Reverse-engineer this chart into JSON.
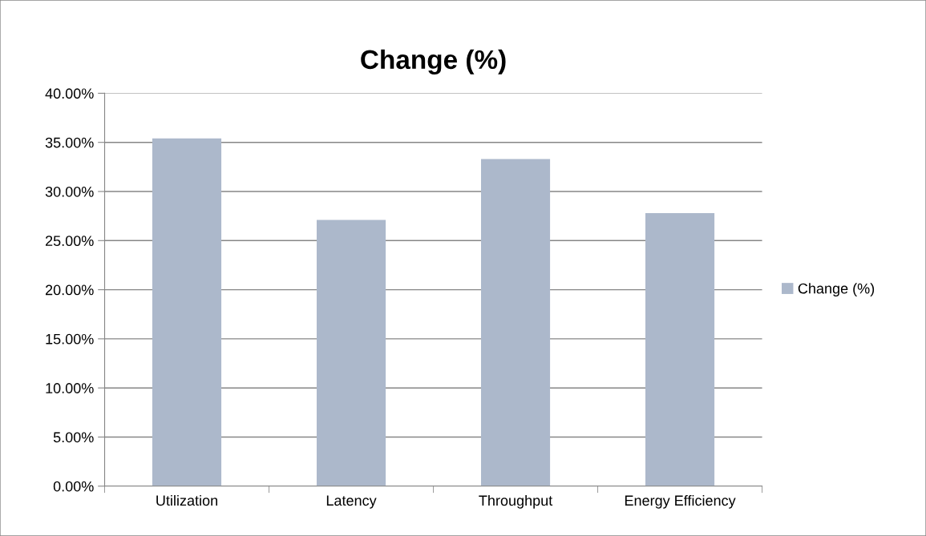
{
  "chart_data": {
    "type": "bar",
    "title": "Change (%)",
    "categories": [
      "Utilization",
      "Latency",
      "Throughput",
      "Energy Efficiency"
    ],
    "series": [
      {
        "name": "Change (%)",
        "color": "#acb8cb",
        "values": [
          35.4,
          27.1,
          33.3,
          27.8
        ]
      }
    ],
    "ylim": [
      0,
      40
    ],
    "yticks": [
      {
        "value": 0,
        "label": "0.00%"
      },
      {
        "value": 5,
        "label": "5.00%"
      },
      {
        "value": 10,
        "label": "10.00%"
      },
      {
        "value": 15,
        "label": "15.00%"
      },
      {
        "value": 20,
        "label": "20.00%"
      },
      {
        "value": 25,
        "label": "25.00%"
      },
      {
        "value": 30,
        "label": "30.00%"
      },
      {
        "value": 35,
        "label": "35.00%"
      },
      {
        "value": 40,
        "label": "40.00%"
      }
    ],
    "grid": "y",
    "legend": "right"
  }
}
